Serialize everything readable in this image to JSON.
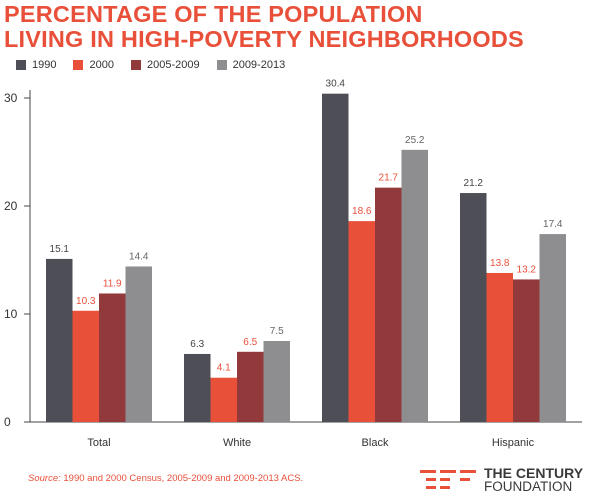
{
  "title": {
    "line1": "PERCENTAGE OF THE POPULATION",
    "line2": "LIVING IN HIGH-POVERTY NEIGHBORHOODS"
  },
  "colors": {
    "title": "#e8503a",
    "series": [
      "#4e4e56",
      "#e8503a",
      "#92393b",
      "#8e8e91"
    ],
    "value_label": [
      "#444444",
      "#e8503a",
      "#e8503a",
      "#666666"
    ]
  },
  "chart_data": {
    "type": "bar",
    "title": "PERCENTAGE OF THE POPULATION LIVING IN HIGH-POVERTY NEIGHBORHOODS",
    "categories": [
      "Total",
      "White",
      "Black",
      "Hispanic"
    ],
    "series": [
      {
        "name": "1990",
        "values": [
          15.1,
          6.3,
          30.4,
          21.2
        ]
      },
      {
        "name": "2000",
        "values": [
          10.3,
          4.1,
          18.6,
          13.8
        ]
      },
      {
        "name": "2005-2009",
        "values": [
          11.9,
          6.5,
          21.7,
          13.2
        ]
      },
      {
        "name": "2009-2013",
        "values": [
          14.4,
          7.5,
          25.2,
          17.4
        ]
      }
    ],
    "value_labels": [
      [
        "15.1",
        "6.3",
        "30.4",
        "21.2"
      ],
      [
        "10.3",
        "4.1",
        "18.6",
        "13.8"
      ],
      [
        "11.9",
        "6.5",
        "21.7",
        "13.2"
      ],
      [
        "14.4",
        "7.5",
        "25.2",
        "17.4"
      ]
    ],
    "xlabel": "",
    "ylabel": "",
    "ylim": [
      0,
      30
    ],
    "yticks": [
      0,
      10,
      20,
      30
    ],
    "ytick_labels": [
      "0",
      "10",
      "20",
      "30"
    ],
    "grid": false,
    "legend": "top-left"
  },
  "source": {
    "lead": "Source:",
    "text": " 1990 and 2000 Census, 2005-2009 and 2009-2013 ACS."
  },
  "logo": {
    "line1": "THE CENTURY",
    "line2": "FOUNDATION"
  }
}
